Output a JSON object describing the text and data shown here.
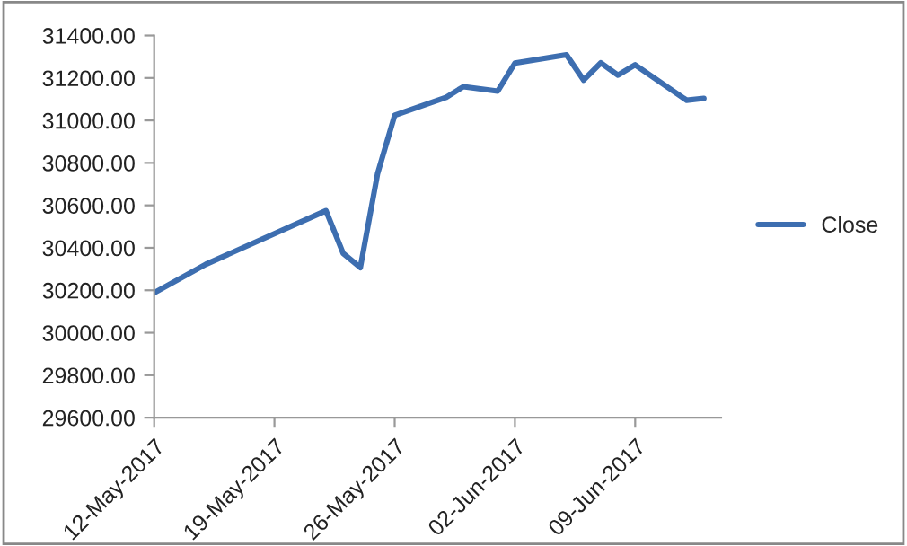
{
  "chart_data": {
    "type": "line",
    "x": [
      "2017-05-12",
      "2017-05-15",
      "2017-05-22",
      "2017-05-23",
      "2017-05-24",
      "2017-05-25",
      "2017-05-26",
      "2017-05-29",
      "2017-05-30",
      "2017-06-01",
      "2017-06-02",
      "2017-06-05",
      "2017-06-06",
      "2017-06-07",
      "2017-06-08",
      "2017-06-09",
      "2017-06-12",
      "2017-06-13"
    ],
    "series": [
      {
        "name": "Close",
        "color": "#3d6eb0",
        "values": [
          30188,
          30322,
          30575,
          30374,
          30307,
          30748,
          31024,
          31109,
          31159,
          31138,
          31270,
          31309,
          31190,
          31271,
          31213,
          31262,
          31095,
          31104
        ]
      }
    ],
    "xlim": [
      "2017-05-12",
      "2017-06-14"
    ],
    "xticks": [
      {
        "value": "2017-05-12",
        "label": "12-May-2017"
      },
      {
        "value": "2017-05-19",
        "label": "19-May-2017"
      },
      {
        "value": "2017-05-26",
        "label": "26-May-2017"
      },
      {
        "value": "2017-06-02",
        "label": "02-Jun-2017"
      },
      {
        "value": "2017-06-09",
        "label": "09-Jun-2017"
      }
    ],
    "ylim": [
      29600,
      31400
    ],
    "yticks": [
      {
        "value": 29600,
        "label": "29600.00"
      },
      {
        "value": 29800,
        "label": "29800.00"
      },
      {
        "value": 30000,
        "label": "30000.00"
      },
      {
        "value": 30200,
        "label": "30200.00"
      },
      {
        "value": 30400,
        "label": "30400.00"
      },
      {
        "value": 30600,
        "label": "30600.00"
      },
      {
        "value": 30800,
        "label": "30800.00"
      },
      {
        "value": 31000,
        "label": "31000.00"
      },
      {
        "value": 31200,
        "label": "31200.00"
      },
      {
        "value": 31400,
        "label": "31400.00"
      }
    ],
    "grid": false,
    "legend": "right",
    "marker": "none",
    "line_style": "solid"
  }
}
